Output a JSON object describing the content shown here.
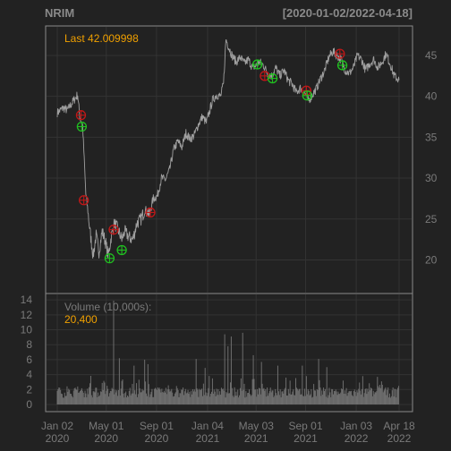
{
  "chart_data": {
    "type": "line",
    "symbol": "NRIM",
    "date_range": "[2020-01-02/2022-04-18]",
    "last_label": "Last 42.009998",
    "price_axis": {
      "ylim": [
        16,
        48.5
      ],
      "ticks": [
        20,
        25,
        30,
        35,
        40,
        45
      ]
    },
    "volume_axis": {
      "label": "Volume (10,000s):",
      "last_value": "20,400",
      "ylim": [
        0,
        14.5
      ],
      "ticks": [
        0,
        2,
        4,
        6,
        8,
        10,
        12,
        14
      ]
    },
    "x_ticks": [
      {
        "day": 0,
        "top": "Jan 02",
        "bottom": "2020"
      },
      {
        "day": 120,
        "top": "May 01",
        "bottom": "2020"
      },
      {
        "day": 243,
        "top": "Sep 01",
        "bottom": "2020"
      },
      {
        "day": 368,
        "top": "Jan 04",
        "bottom": "2021"
      },
      {
        "day": 487,
        "top": "May 03",
        "bottom": "2021"
      },
      {
        "day": 608,
        "top": "Sep 01",
        "bottom": "2021"
      },
      {
        "day": 732,
        "top": "Jan 03",
        "bottom": "2022"
      },
      {
        "day": 837,
        "top": "Apr 18",
        "bottom": "2022"
      }
    ],
    "x_range_days": [
      0,
      837
    ],
    "price_series": [
      [
        0,
        38
      ],
      [
        15,
        38.6
      ],
      [
        25,
        38.3
      ],
      [
        40,
        39.5
      ],
      [
        50,
        40.2
      ],
      [
        55,
        37.5
      ],
      [
        62,
        36.5
      ],
      [
        70,
        28
      ],
      [
        75,
        26
      ],
      [
        80,
        23.5
      ],
      [
        88,
        20.5
      ],
      [
        95,
        23
      ],
      [
        102,
        21
      ],
      [
        110,
        23.5
      ],
      [
        118,
        22.2
      ],
      [
        125,
        20.5
      ],
      [
        132,
        22.8
      ],
      [
        140,
        24.5
      ],
      [
        148,
        23.8
      ],
      [
        158,
        22.5
      ],
      [
        165,
        23.5
      ],
      [
        175,
        22.8
      ],
      [
        185,
        22.5
      ],
      [
        195,
        24.5
      ],
      [
        205,
        25
      ],
      [
        215,
        26.2
      ],
      [
        225,
        25.5
      ],
      [
        235,
        27.5
      ],
      [
        245,
        27.8
      ],
      [
        255,
        30
      ],
      [
        265,
        29.8
      ],
      [
        275,
        31
      ],
      [
        285,
        33.5
      ],
      [
        295,
        34.5
      ],
      [
        305,
        33.8
      ],
      [
        315,
        35.5
      ],
      [
        325,
        34.8
      ],
      [
        335,
        35.2
      ],
      [
        345,
        36.5
      ],
      [
        355,
        37.5
      ],
      [
        365,
        36.8
      ],
      [
        372,
        38
      ],
      [
        380,
        39.5
      ],
      [
        390,
        40.2
      ],
      [
        400,
        40
      ],
      [
        407,
        41.5
      ],
      [
        413,
        47
      ],
      [
        420,
        46
      ],
      [
        428,
        45
      ],
      [
        438,
        44.2
      ],
      [
        448,
        44.8
      ],
      [
        458,
        44
      ],
      [
        468,
        44.5
      ],
      [
        478,
        43.5
      ],
      [
        488,
        43.8
      ],
      [
        495,
        44.2
      ],
      [
        505,
        43.8
      ],
      [
        515,
        42.8
      ],
      [
        525,
        42.5
      ],
      [
        535,
        43.5
      ],
      [
        545,
        42.5
      ],
      [
        555,
        43.2
      ],
      [
        565,
        42
      ],
      [
        575,
        41.5
      ],
      [
        585,
        40.5
      ],
      [
        595,
        41
      ],
      [
        605,
        40.5
      ],
      [
        615,
        39.5
      ],
      [
        625,
        40.2
      ],
      [
        635,
        41
      ],
      [
        645,
        42.2
      ],
      [
        655,
        43.2
      ],
      [
        665,
        44.8
      ],
      [
        675,
        45.5
      ],
      [
        685,
        45
      ],
      [
        695,
        44.5
      ],
      [
        705,
        43.2
      ],
      [
        715,
        42.8
      ],
      [
        725,
        43.5
      ],
      [
        735,
        45
      ],
      [
        745,
        44.5
      ],
      [
        755,
        43.2
      ],
      [
        765,
        44
      ],
      [
        775,
        44.5
      ],
      [
        785,
        43.5
      ],
      [
        795,
        44.2
      ],
      [
        805,
        45.2
      ],
      [
        815,
        44
      ],
      [
        825,
        42.5
      ],
      [
        837,
        42.0
      ]
    ],
    "markers": [
      {
        "day": 58,
        "price": 37.7,
        "kind": "sell"
      },
      {
        "day": 60,
        "price": 36.3,
        "kind": "buy"
      },
      {
        "day": 65,
        "price": 27.3,
        "kind": "sell"
      },
      {
        "day": 128,
        "price": 20.2,
        "kind": "buy"
      },
      {
        "day": 138,
        "price": 23.7,
        "kind": "sell"
      },
      {
        "day": 158,
        "price": 21.2,
        "kind": "buy"
      },
      {
        "day": 228,
        "price": 25.8,
        "kind": "sell"
      },
      {
        "day": 490,
        "price": 43.9,
        "kind": "buy"
      },
      {
        "day": 508,
        "price": 42.5,
        "kind": "sell"
      },
      {
        "day": 527,
        "price": 42.2,
        "kind": "buy"
      },
      {
        "day": 610,
        "price": 40.7,
        "kind": "sell"
      },
      {
        "day": 612,
        "price": 40.1,
        "kind": "buy"
      },
      {
        "day": 692,
        "price": 45.2,
        "kind": "sell"
      },
      {
        "day": 698,
        "price": 43.8,
        "kind": "buy"
      }
    ],
    "volume_base": 0.9,
    "volume_spikes": [
      [
        138,
        13.9
      ],
      [
        153,
        6.2
      ],
      [
        188,
        5.2
      ],
      [
        215,
        6.0
      ],
      [
        222,
        5.4
      ],
      [
        340,
        6.1
      ],
      [
        362,
        4.9
      ],
      [
        410,
        9.4
      ],
      [
        418,
        7.8
      ],
      [
        426,
        9.1
      ],
      [
        455,
        9.6
      ],
      [
        480,
        6.6
      ],
      [
        500,
        5.7
      ],
      [
        540,
        5.2
      ],
      [
        560,
        3.6
      ],
      [
        600,
        5.2
      ],
      [
        610,
        3.8
      ],
      [
        640,
        6.1
      ],
      [
        660,
        5.0
      ],
      [
        700,
        3.2
      ],
      [
        748,
        3.8
      ],
      [
        785,
        3.7
      ]
    ],
    "colors": {
      "background": "#222222",
      "frame": "#8a8a8a",
      "grid": "#333333",
      "text": "#7a7a7a",
      "title": "#8a8a8a",
      "accent": "#f0a000",
      "price_line": "#a0a0a0",
      "volume_bar": "#6e6e6e",
      "buy": "#20c020",
      "sell": "#c01818"
    }
  }
}
